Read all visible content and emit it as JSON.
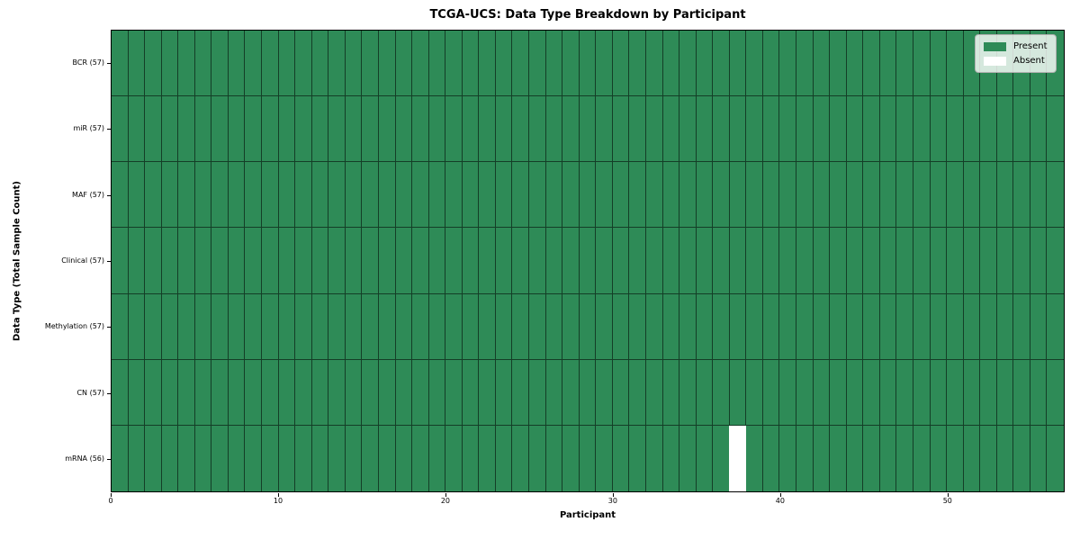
{
  "chart_data": {
    "type": "heatmap",
    "title": "TCGA-UCS: Data Type Breakdown by Participant",
    "xlabel": "Participant",
    "ylabel": "Data Type (Total Sample Count)",
    "n_participants": 57,
    "x_ticks": [
      0,
      10,
      20,
      30,
      40,
      50
    ],
    "x_range": [
      0,
      57
    ],
    "rows": [
      {
        "label": "BCR (57)",
        "data_type": "BCR",
        "present_count": 57,
        "absent_participants": []
      },
      {
        "label": "miR (57)",
        "data_type": "miR",
        "present_count": 57,
        "absent_participants": []
      },
      {
        "label": "MAF (57)",
        "data_type": "MAF",
        "present_count": 57,
        "absent_participants": []
      },
      {
        "label": "Clinical (57)",
        "data_type": "Clinical",
        "present_count": 57,
        "absent_participants": []
      },
      {
        "label": "Methylation (57)",
        "data_type": "Methylation",
        "present_count": 57,
        "absent_participants": []
      },
      {
        "label": "CN (57)",
        "data_type": "CN",
        "present_count": 57,
        "absent_participants": []
      },
      {
        "label": "mRNA (56)",
        "data_type": "mRNA",
        "present_count": 56,
        "absent_participants": [
          37
        ]
      }
    ],
    "legend": {
      "position": "upper right",
      "items": [
        {
          "label": "Present",
          "color": "#2e8b57"
        },
        {
          "label": "Absent",
          "color": "#ffffff"
        }
      ]
    },
    "colors": {
      "present": "#2e8b57",
      "absent": "#ffffff",
      "cell_edge": "rgba(0,0,0,0.55)",
      "axis": "#000000"
    },
    "grid": true
  }
}
